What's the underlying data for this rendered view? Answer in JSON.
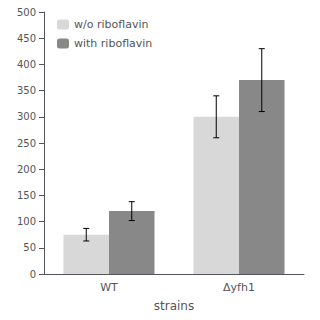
{
  "chart_data": {
    "type": "bar",
    "xlabel": "strains",
    "categories": [
      "WT",
      "Δyfh1"
    ],
    "series": [
      {
        "name": "w/o riboflavin",
        "color": "#d8d8d8",
        "values": [
          75,
          300
        ],
        "errors": [
          12,
          40
        ]
      },
      {
        "name": "with riboflavin",
        "color": "#888888",
        "values": [
          120,
          370
        ],
        "errors": [
          18,
          60
        ]
      }
    ],
    "ylim": [
      0,
      500
    ],
    "yticks": [
      0,
      50,
      100,
      150,
      200,
      250,
      300,
      350,
      400,
      450,
      500
    ],
    "grid": false,
    "legend": "upper left"
  }
}
